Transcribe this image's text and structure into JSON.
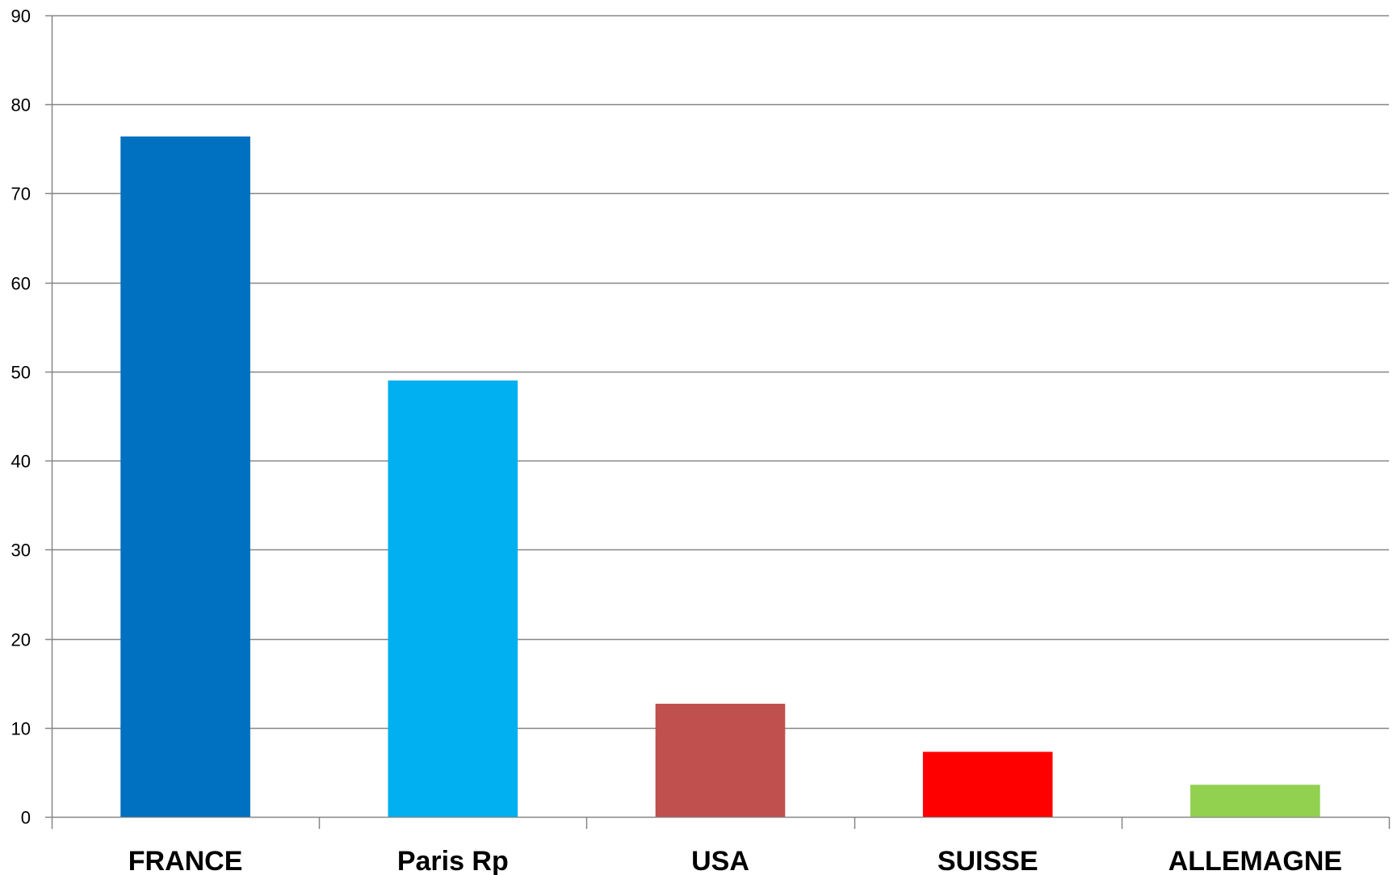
{
  "chart_data": {
    "type": "bar",
    "title": "",
    "xlabel": "",
    "ylabel": "",
    "categories": [
      "FRANCE",
      "Paris Rp",
      "USA",
      "SUISSE",
      "ALLEMAGNE"
    ],
    "values": [
      76.4,
      49.0,
      12.7,
      7.3,
      3.6
    ],
    "colors": [
      "#0070C0",
      "#00B0F0",
      "#C0504D",
      "#FF0000",
      "#92D050"
    ],
    "ylim": [
      0,
      90
    ],
    "yticks": [
      0,
      10,
      20,
      30,
      40,
      50,
      60,
      70,
      80,
      90
    ],
    "grid": true,
    "gridline_color": "#868686",
    "legend": "none"
  }
}
